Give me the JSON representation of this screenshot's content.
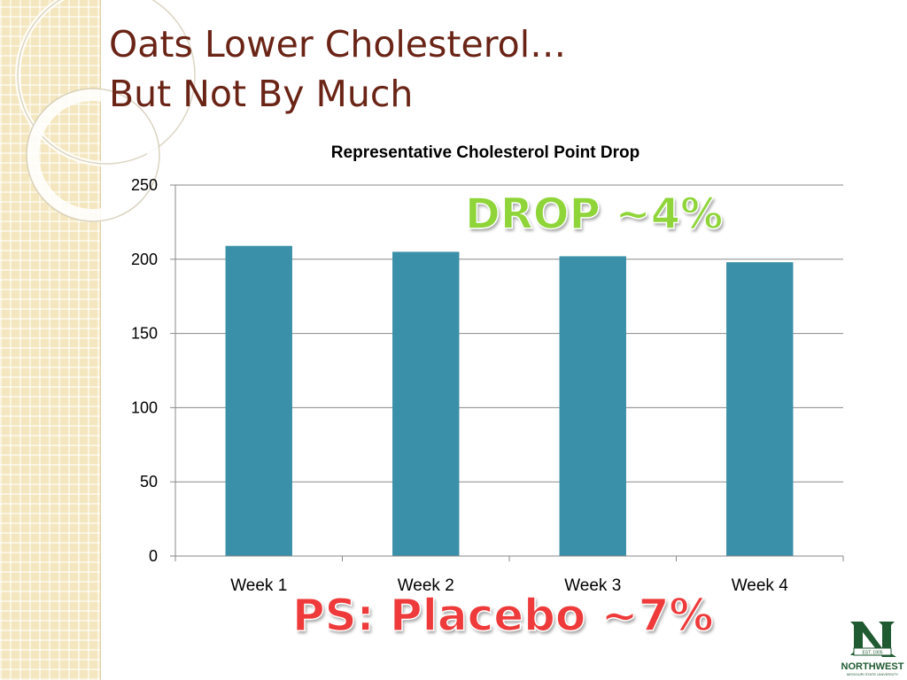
{
  "slide": {
    "title_line1": "Oats Lower Cholesterol…",
    "title_line2": "But Not By Much"
  },
  "callouts": {
    "drop": "DROP ~4%",
    "placebo": "PS: Placebo ~7%"
  },
  "logo": {
    "est": "EST. 1905",
    "name": "NORTHWEST",
    "subtitle": "MISSOURI STATE UNIVERSITY"
  },
  "colors": {
    "bar": "#3a90a8",
    "title": "#6a2416",
    "drop_callout": "#8fd53a",
    "placebo_callout": "#ee3a3a",
    "logo_green": "#1f5a31"
  },
  "chart_data": {
    "type": "bar",
    "title": "Representative Cholesterol Point Drop",
    "categories": [
      "Week 1",
      "Week 2",
      "Week 3",
      "Week 4"
    ],
    "values": [
      209,
      205,
      202,
      198
    ],
    "ylim": [
      0,
      250
    ],
    "yticks": [
      "0",
      "50",
      "100",
      "150",
      "200",
      "250"
    ],
    "xlabel": "",
    "ylabel": "",
    "grid": true,
    "legend": "none"
  }
}
